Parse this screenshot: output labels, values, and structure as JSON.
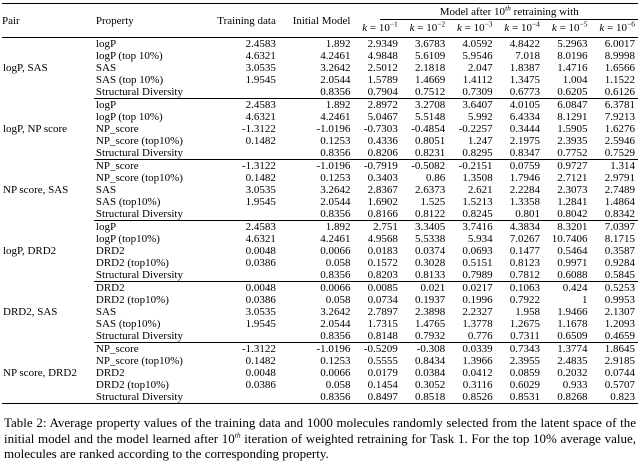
{
  "table": {
    "header": {
      "pair": "Pair",
      "property": "Property",
      "training_data": "Training data",
      "initial_model": "Initial Model",
      "group": {
        "prefix": "Model after 10",
        "sup": "th",
        "suffix": " retraining with"
      },
      "k_columns": [
        {
          "var": "k",
          "eq": " = 10",
          "exp": "−1"
        },
        {
          "var": "k",
          "eq": " = 10",
          "exp": "−2"
        },
        {
          "var": "k",
          "eq": " = 10",
          "exp": "−3"
        },
        {
          "var": "k",
          "eq": " = 10",
          "exp": "−4"
        },
        {
          "var": "k",
          "eq": " = 10",
          "exp": "−5"
        },
        {
          "var": "k",
          "eq": " = 10",
          "exp": "−6"
        }
      ]
    },
    "blocks": [
      {
        "pair": "logP, SAS",
        "rows": [
          {
            "property": "logP",
            "training_data": "2.4583",
            "initial_model": "1.892",
            "values": [
              "2.9349",
              "3.6783",
              "4.0592",
              "4.8422",
              "5.2963",
              "6.0017"
            ]
          },
          {
            "property": "logP (top 10%)",
            "training_data": "4.6321",
            "initial_model": "4.2461",
            "values": [
              "4.9848",
              "5.6109",
              "5.9546",
              "7.018",
              "8.0196",
              "8.9998"
            ]
          },
          {
            "property": "SAS",
            "training_data": "3.0535",
            "initial_model": "3.2642",
            "values": [
              "2.5012",
              "2.1818",
              "2.047",
              "1.8387",
              "1.4716",
              "1.6566"
            ]
          },
          {
            "property": "SAS (top 10%)",
            "training_data": "1.9545",
            "initial_model": "2.0544",
            "values": [
              "1.5789",
              "1.4669",
              "1.4112",
              "1.3475",
              "1.004",
              "1.1522"
            ]
          },
          {
            "property": "Structural Diversity",
            "training_data": "",
            "initial_model": "0.8356",
            "values": [
              "0.7904",
              "0.7512",
              "0.7309",
              "0.6773",
              "0.6205",
              "0.6126"
            ]
          }
        ]
      },
      {
        "pair": "logP, NP score",
        "rows": [
          {
            "property": "logP",
            "training_data": "2.4583",
            "initial_model": "1.892",
            "values": [
              "2.8972",
              "3.2708",
              "3.6407",
              "4.0105",
              "6.0847",
              "6.3781"
            ]
          },
          {
            "property": "logP (top 10%)",
            "training_data": "4.6321",
            "initial_model": "4.2461",
            "values": [
              "5.0467",
              "5.5148",
              "5.992",
              "6.4334",
              "8.1291",
              "7.9213"
            ]
          },
          {
            "property": "NP_score",
            "training_data": "-1.3122",
            "initial_model": "-1.0196",
            "values": [
              "-0.7303",
              "-0.4854",
              "-0.2257",
              "0.3444",
              "1.5905",
              "1.6276"
            ]
          },
          {
            "property": "NP_score (top10%)",
            "training_data": "0.1482",
            "initial_model": "0.1253",
            "values": [
              "0.4336",
              "0.8051",
              "1.247",
              "2.1975",
              "2.3935",
              "2.5946"
            ]
          },
          {
            "property": "Structural Diversity",
            "training_data": "",
            "initial_model": "0.8356",
            "values": [
              "0.8206",
              "0.8231",
              "0.8295",
              "0.8347",
              "0.7752",
              "0.7529"
            ]
          }
        ]
      },
      {
        "pair": "NP score, SAS",
        "rows": [
          {
            "property": "NP_score",
            "training_data": "-1.3122",
            "initial_model": "-1.0196",
            "values": [
              "-0.7919",
              "-0.5082",
              "-0.2151",
              "0.0759",
              "0.9727",
              "1.314"
            ]
          },
          {
            "property": "NP_score (top10%)",
            "training_data": "0.1482",
            "initial_model": "0.1253",
            "values": [
              "0.3403",
              "0.86",
              "1.3508",
              "1.7946",
              "2.7121",
              "2.9791"
            ]
          },
          {
            "property": "SAS",
            "training_data": "3.0535",
            "initial_model": "3.2642",
            "values": [
              "2.8367",
              "2.6373",
              "2.621",
              "2.2284",
              "2.3073",
              "2.7489"
            ]
          },
          {
            "property": "SAS (top10%)",
            "training_data": "1.9545",
            "initial_model": "2.0544",
            "values": [
              "1.6902",
              "1.525",
              "1.5213",
              "1.3358",
              "1.2841",
              "1.4864"
            ]
          },
          {
            "property": "Structural Diversity",
            "training_data": "",
            "initial_model": "0.8356",
            "values": [
              "0.8166",
              "0.8122",
              "0.8245",
              "0.801",
              "0.8042",
              "0.8342"
            ]
          }
        ]
      },
      {
        "pair": "logP, DRD2",
        "rows": [
          {
            "property": "logP",
            "training_data": "2.4583",
            "initial_model": "1.892",
            "values": [
              "2.751",
              "3.3405",
              "3.7416",
              "4.3834",
              "8.3201",
              "7.0397"
            ]
          },
          {
            "property": "logP (top10%)",
            "training_data": "4.6321",
            "initial_model": "4.2461",
            "values": [
              "4.9568",
              "5.5338",
              "5.934",
              "7.0267",
              "10.7406",
              "8.1715"
            ]
          },
          {
            "property": "DRD2",
            "training_data": "0.0048",
            "initial_model": "0.0066",
            "values": [
              "0.0183",
              "0.0374",
              "0.0693",
              "0.1477",
              "0.5464",
              "0.3587"
            ]
          },
          {
            "property": "DRD2 (top10%)",
            "training_data": "0.0386",
            "initial_model": "0.058",
            "values": [
              "0.1572",
              "0.3028",
              "0.5151",
              "0.8123",
              "0.9971",
              "0.9284"
            ]
          },
          {
            "property": "Structural Diversity",
            "training_data": "",
            "initial_model": "0.8356",
            "values": [
              "0.8203",
              "0.8133",
              "0.7989",
              "0.7812",
              "0.6088",
              "0.5845"
            ]
          }
        ]
      },
      {
        "pair": "DRD2, SAS",
        "rows": [
          {
            "property": "DRD2",
            "training_data": "0.0048",
            "initial_model": "0.0066",
            "values": [
              "0.0085",
              "0.021",
              "0.0217",
              "0.1063",
              "0.424",
              "0.5253"
            ]
          },
          {
            "property": "DRD2 (top10%)",
            "training_data": "0.0386",
            "initial_model": "0.058",
            "values": [
              "0.0734",
              "0.1937",
              "0.1996",
              "0.7922",
              "1",
              "0.9953"
            ]
          },
          {
            "property": "SAS",
            "training_data": "3.0535",
            "initial_model": "3.2642",
            "values": [
              "2.7897",
              "2.3898",
              "2.2327",
              "1.958",
              "1.9466",
              "2.1307"
            ]
          },
          {
            "property": "SAS (top10%)",
            "training_data": "1.9545",
            "initial_model": "2.0544",
            "values": [
              "1.7315",
              "1.4765",
              "1.3778",
              "1.2675",
              "1.1678",
              "1.2093"
            ]
          },
          {
            "property": "Structural Diversity",
            "training_data": "",
            "initial_model": "0.8356",
            "values": [
              "0.8148",
              "0.7932",
              "0.776",
              "0.7311",
              "0.6509",
              "0.4659"
            ]
          }
        ]
      },
      {
        "pair": "NP score, DRD2",
        "rows": [
          {
            "property": "NP_score",
            "training_data": "-1.3122",
            "initial_model": "-1.0196",
            "values": [
              "-0.5209",
              "-0.308",
              "0.0339",
              "0.7343",
              "1.3774",
              "1.8645"
            ]
          },
          {
            "property": "NP_score (top10%)",
            "training_data": "0.1482",
            "initial_model": "0.1253",
            "values": [
              "0.5555",
              "0.8434",
              "1.3966",
              "2.3955",
              "2.4835",
              "2.9185"
            ]
          },
          {
            "property": "DRD2",
            "training_data": "0.0048",
            "initial_model": "0.0066",
            "values": [
              "0.0179",
              "0.0384",
              "0.0412",
              "0.0859",
              "0.2032",
              "0.0744"
            ]
          },
          {
            "property": "DRD2 (top10%)",
            "training_data": "0.0386",
            "initial_model": "0.058",
            "values": [
              "0.1454",
              "0.3052",
              "0.3116",
              "0.6029",
              "0.933",
              "0.5707"
            ]
          },
          {
            "property": "Structural Diversity",
            "training_data": "",
            "initial_model": "0.8356",
            "values": [
              "0.8497",
              "0.8518",
              "0.8526",
              "0.8531",
              "0.8268",
              "0.823"
            ]
          }
        ]
      }
    ]
  },
  "caption": {
    "label": "Table 2:",
    "text_before_sup": " Average property values of the training data and 1000 molecules randomly selected from the latent space of the initial model and the model learned after 10",
    "sup": "th",
    "text_after_sup": " iteration of weighted retraining for Task 1. For the top 10% average value, molecules are ranked according to the corresponding property."
  }
}
